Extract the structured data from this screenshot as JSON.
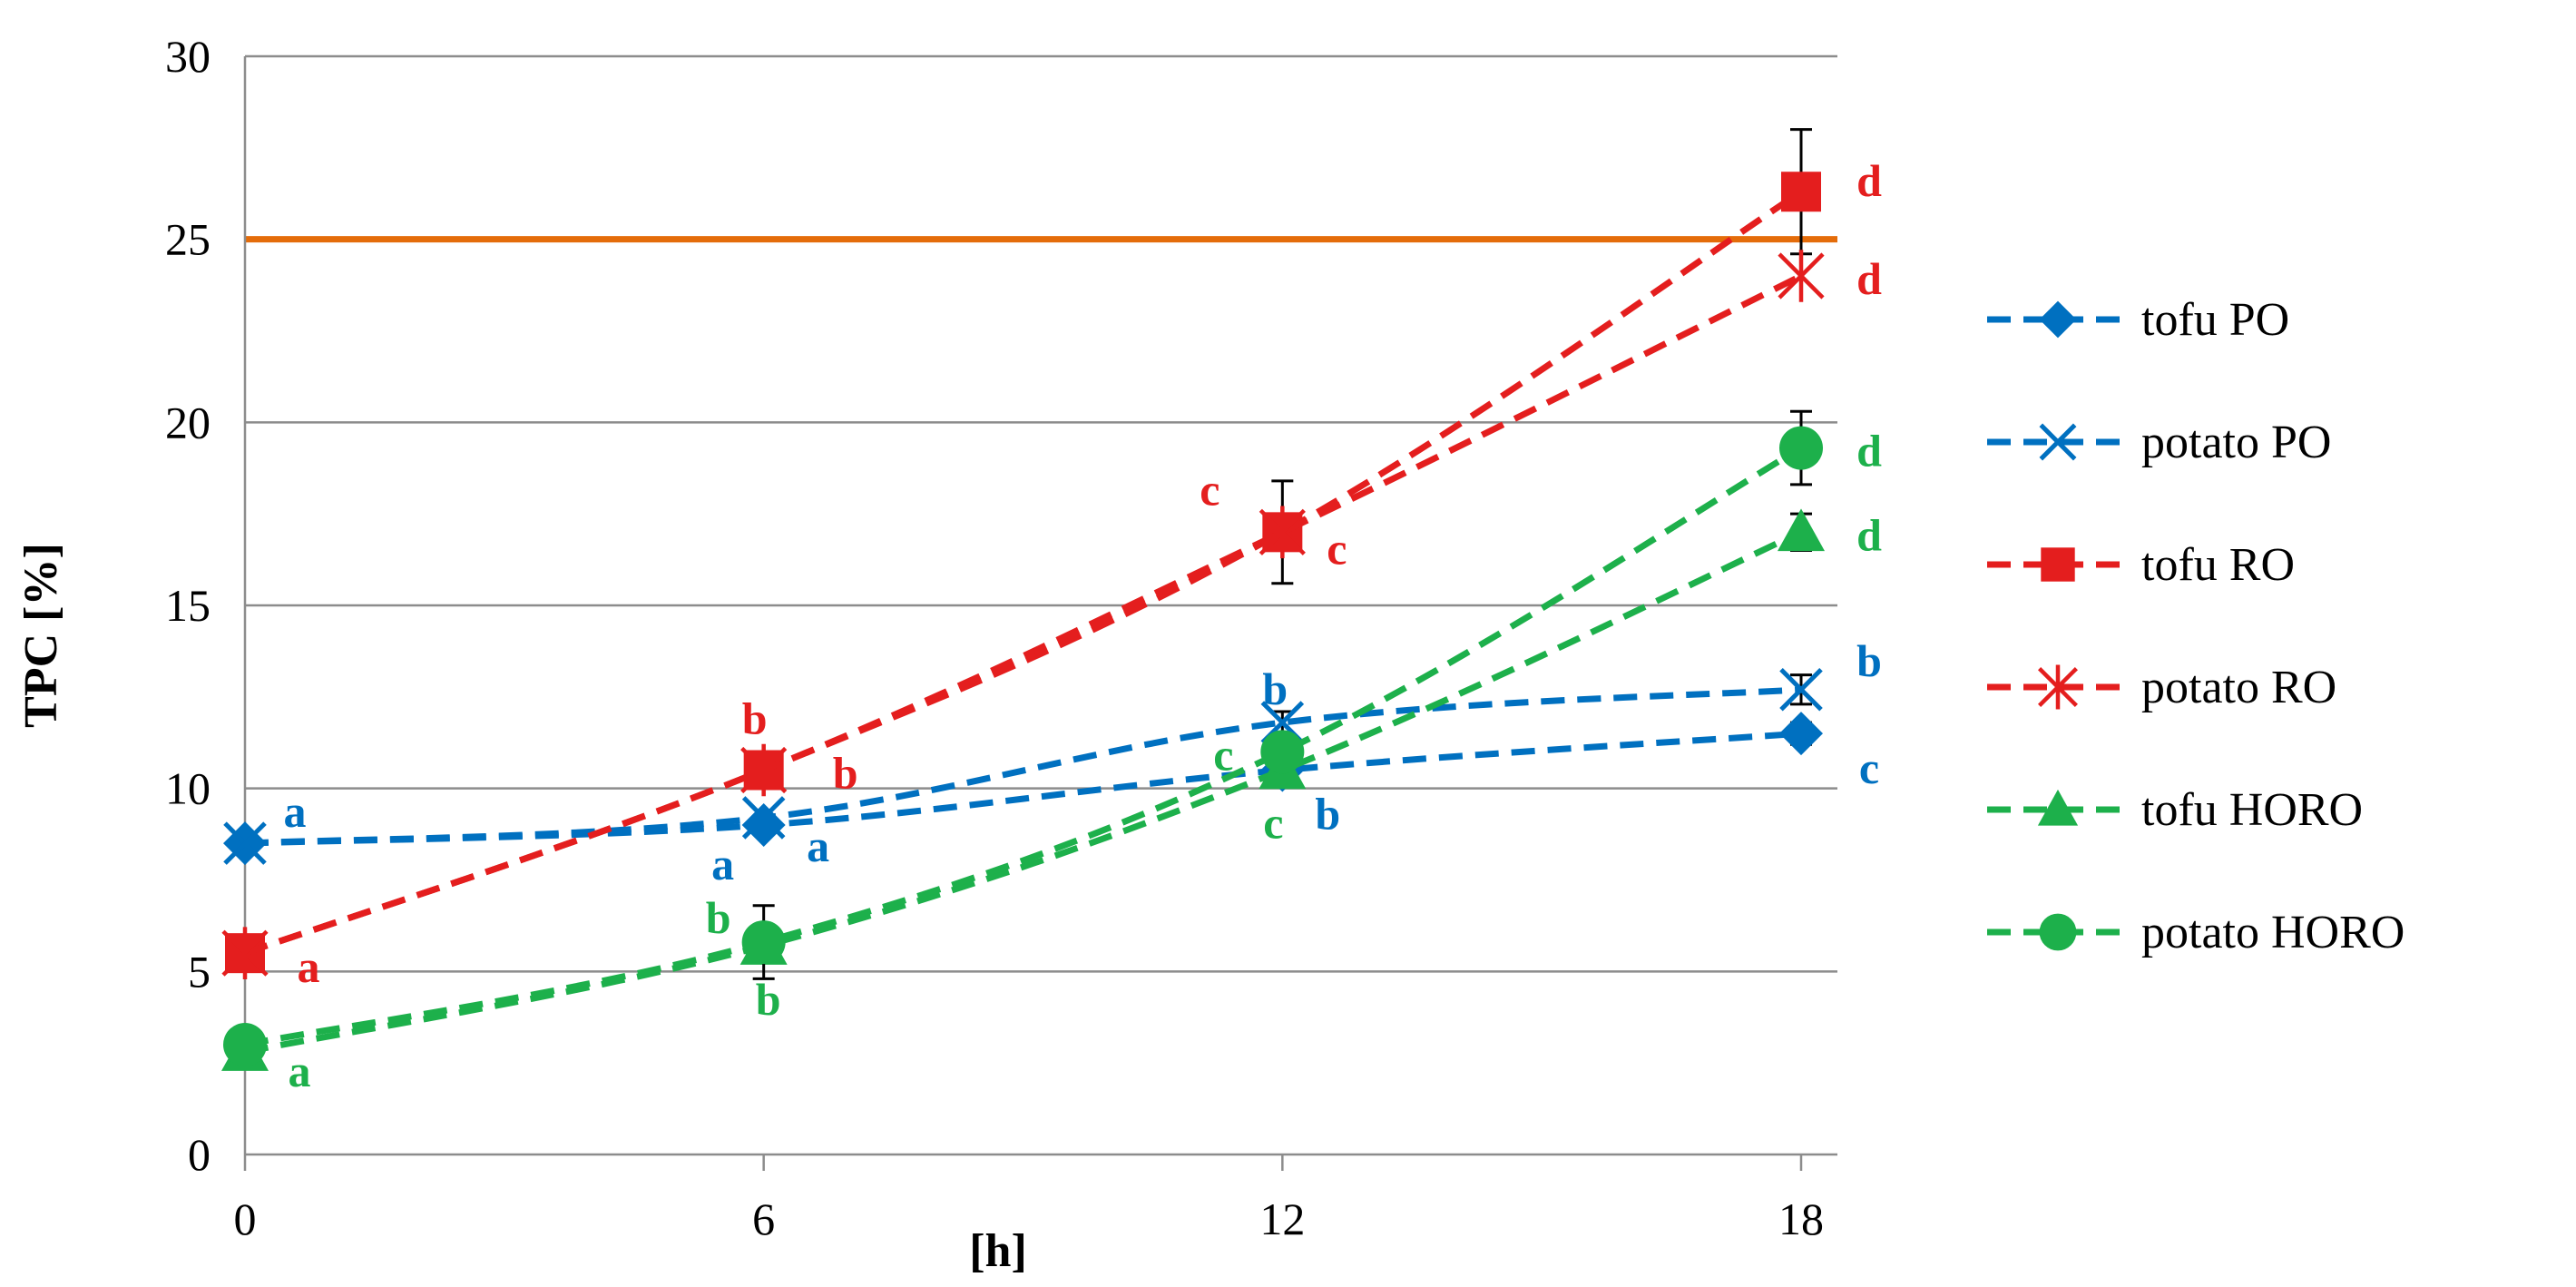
{
  "chart_data": {
    "type": "line",
    "ylabel": "TPC [%]",
    "xlabel": "[h]",
    "x": [
      0,
      6,
      12,
      18
    ],
    "xticks": [
      "0",
      "6",
      "12",
      "18"
    ],
    "ylim": [
      0,
      30
    ],
    "yticks": [
      "0",
      "5",
      "10",
      "15",
      "20",
      "25",
      "30"
    ],
    "grid": true,
    "legend_position": "right",
    "reference_line": {
      "y": 25,
      "color": "#E46C0A"
    },
    "series": [
      {
        "name": "tofu PO",
        "color": "#0070C0",
        "marker": "diamond",
        "values": [
          8.5,
          9.0,
          10.5,
          11.5
        ],
        "errors": [
          0,
          0,
          0,
          0.3
        ],
        "labels": [
          "a",
          "a",
          "b",
          "c"
        ]
      },
      {
        "name": "potato PO",
        "color": "#0070C0",
        "marker": "x",
        "values": [
          8.5,
          9.2,
          11.8,
          12.7
        ],
        "errors": [
          0,
          0,
          0.3,
          0.4
        ],
        "labels": [
          "a",
          "a",
          "b",
          "b"
        ]
      },
      {
        "name": "tofu RO",
        "color": "#E41E1E",
        "marker": "square",
        "values": [
          5.5,
          10.5,
          17.0,
          26.3
        ],
        "errors": [
          0,
          0,
          1.4,
          1.7
        ],
        "labels": [
          "a",
          "b",
          "c",
          "d"
        ]
      },
      {
        "name": "potato RO",
        "color": "#E41E1E",
        "marker": "asterisk",
        "values": [
          5.5,
          10.5,
          17.0,
          24.0
        ],
        "errors": [
          0,
          0,
          0,
          0
        ],
        "labels": [
          "a",
          "b",
          "c",
          "d"
        ]
      },
      {
        "name": "tofu HORO",
        "color": "#1DB04B",
        "marker": "triangle",
        "values": [
          2.8,
          5.7,
          10.5,
          17.0
        ],
        "errors": [
          0,
          0,
          0,
          0.5
        ],
        "labels": [
          "a",
          "b",
          "c",
          "d"
        ]
      },
      {
        "name": "potato HORO",
        "color": "#1DB04B",
        "marker": "circle",
        "values": [
          3.0,
          5.8,
          11.0,
          19.3
        ],
        "errors": [
          0,
          1.0,
          0,
          1.0
        ],
        "labels": [
          "a",
          "b",
          "c",
          "d"
        ]
      }
    ],
    "annotations": [
      {
        "text": "a",
        "color": "#0070C0",
        "x": 0,
        "y": 8.5,
        "dx": 55,
        "dy": -18
      },
      {
        "text": "a",
        "color": "#E41E1E",
        "x": 0,
        "y": 5.5,
        "dx": 70,
        "dy": 32
      },
      {
        "text": "a",
        "color": "#1DB04B",
        "x": 0,
        "y": 2.8,
        "dx": 60,
        "dy": 38
      },
      {
        "text": "a",
        "color": "#0070C0",
        "x": 6,
        "y": 9.0,
        "dx": -45,
        "dy": 60
      },
      {
        "text": "a",
        "color": "#0070C0",
        "x": 6,
        "y": 9.0,
        "dx": 60,
        "dy": 40
      },
      {
        "text": "b",
        "color": "#E41E1E",
        "x": 6,
        "y": 10.5,
        "dx": -10,
        "dy": -40
      },
      {
        "text": "b",
        "color": "#E41E1E",
        "x": 6,
        "y": 10.5,
        "dx": 90,
        "dy": 20
      },
      {
        "text": "b",
        "color": "#1DB04B",
        "x": 6,
        "y": 5.8,
        "dx": -50,
        "dy": -10
      },
      {
        "text": "b",
        "color": "#1DB04B",
        "x": 6,
        "y": 5.8,
        "dx": 5,
        "dy": 80
      },
      {
        "text": "c",
        "color": "#E41E1E",
        "x": 12,
        "y": 17.0,
        "dx": -80,
        "dy": -30
      },
      {
        "text": "c",
        "color": "#E41E1E",
        "x": 12,
        "y": 17.0,
        "dx": 60,
        "dy": 35
      },
      {
        "text": "b",
        "color": "#0070C0",
        "x": 12,
        "y": 11.8,
        "dx": -8,
        "dy": -20
      },
      {
        "text": "c",
        "color": "#1DB04B",
        "x": 12,
        "y": 10.5,
        "dx": -65,
        "dy": 0
      },
      {
        "text": "c",
        "color": "#1DB04B",
        "x": 12,
        "y": 10.5,
        "dx": -10,
        "dy": 75
      },
      {
        "text": "b",
        "color": "#0070C0",
        "x": 12,
        "y": 10.5,
        "dx": 50,
        "dy": 65
      },
      {
        "text": "d",
        "color": "#E41E1E",
        "x": 18,
        "y": 26.3,
        "dx": 75,
        "dy": 5
      },
      {
        "text": "d",
        "color": "#E41E1E",
        "x": 18,
        "y": 24.0,
        "dx": 75,
        "dy": 20
      },
      {
        "text": "d",
        "color": "#1DB04B",
        "x": 18,
        "y": 19.3,
        "dx": 75,
        "dy": 20
      },
      {
        "text": "d",
        "color": "#1DB04B",
        "x": 18,
        "y": 17.0,
        "dx": 75,
        "dy": 20
      },
      {
        "text": "b",
        "color": "#0070C0",
        "x": 18,
        "y": 12.7,
        "dx": 75,
        "dy": -15
      },
      {
        "text": "c",
        "color": "#0070C0",
        "x": 18,
        "y": 11.5,
        "dx": 75,
        "dy": 55
      }
    ]
  }
}
